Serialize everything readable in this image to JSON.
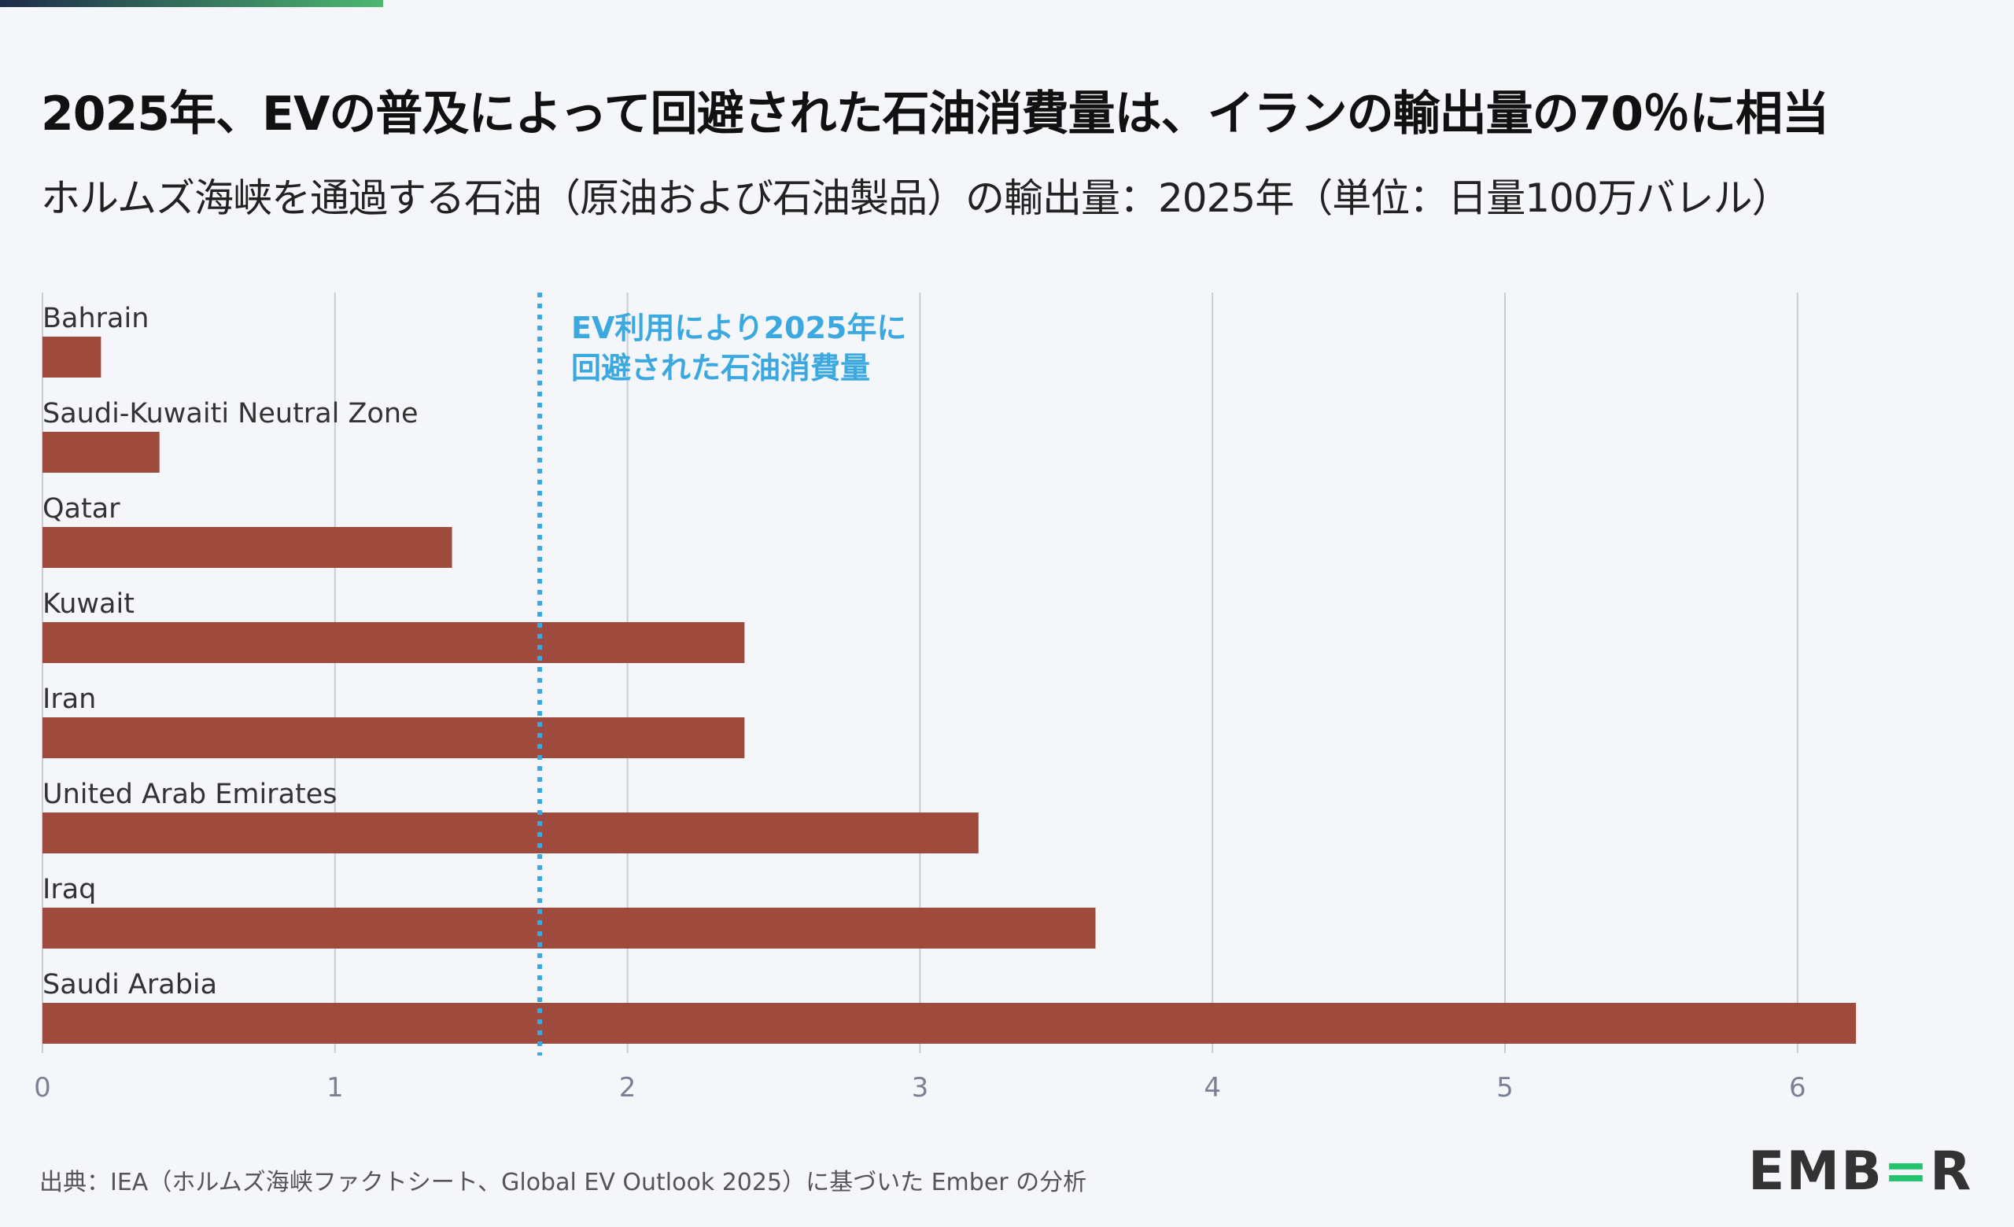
{
  "header": {
    "title": "2025年、EVの普及によって回避された石油消費量は、イランの輸出量の70％に相当",
    "subtitle": "ホルムズ海峡を通過する石油（原油および石油製品）の輸出量：2025年（単位：日量100万バレル）"
  },
  "chart_data": {
    "type": "bar",
    "orientation": "horizontal",
    "categories": [
      "Bahrain",
      "Saudi-Kuwaiti Neutral Zone",
      "Qatar",
      "Kuwait",
      "Iran",
      "United Arab Emirates",
      "Iraq",
      "Saudi Arabia"
    ],
    "values": [
      0.2,
      0.4,
      1.4,
      2.4,
      2.4,
      3.2,
      3.6,
      6.2
    ],
    "xlim": [
      0,
      6.4
    ],
    "xticks": [
      "0",
      "1",
      "2",
      "3",
      "4",
      "5",
      "6"
    ],
    "grid": true,
    "bar_color": "#9b4537",
    "reference_line": {
      "value": 1.7,
      "color": "#3ba9e0",
      "label_lines": [
        "EV利用により2025年に",
        "回避された石油消費量"
      ]
    }
  },
  "footer": {
    "source": "出典：IEA（ホルムズ海峡ファクトシート、Global EV Outlook 2025）に基づいた Ember の分析",
    "logo_text": "EMBER",
    "logo_color": "#22c46e"
  }
}
